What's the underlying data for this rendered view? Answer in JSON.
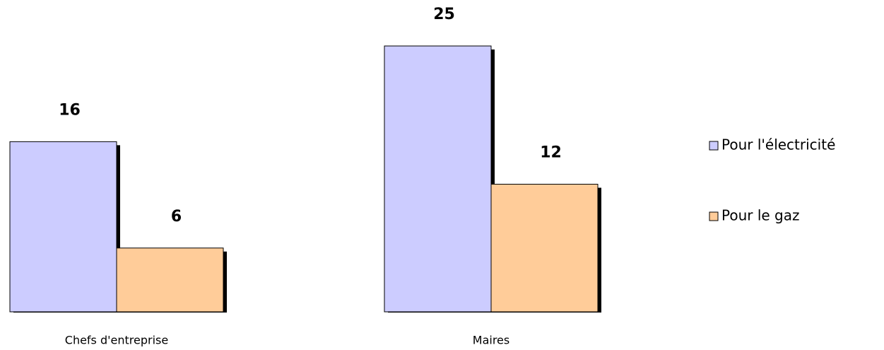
{
  "chart_data": {
    "type": "bar",
    "categories": [
      "Chefs d'entreprise",
      "Maires"
    ],
    "series": [
      {
        "name": "Pour l'électricité",
        "color": "#ccccff",
        "values": [
          16,
          25
        ]
      },
      {
        "name": "Pour le gaz",
        "color": "#ffcc99",
        "values": [
          6,
          12
        ]
      }
    ]
  }
}
